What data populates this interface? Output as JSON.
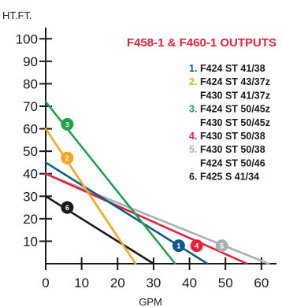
{
  "chart_data": {
    "type": "line",
    "title": "F458-1 & F460-1 OUTPUTS",
    "title_color": "#e8213a",
    "ylabel": "HT.FT.",
    "xlabel": "GPM",
    "xlim": [
      0,
      62
    ],
    "ylim": [
      0,
      105
    ],
    "x_ticks": [
      0,
      10,
      20,
      30,
      40,
      50,
      60
    ],
    "y_ticks": [
      10,
      20,
      30,
      40,
      50,
      60,
      70,
      80,
      90,
      100
    ],
    "grid": false,
    "legend_position": "right",
    "series": [
      {
        "id": "1",
        "legend": [
          "F424 ST 41/38"
        ],
        "color": "#0d5a86",
        "x": [
          0,
          45
        ],
        "y": [
          45,
          0
        ],
        "marker_x": 37,
        "marker_y": 8
      },
      {
        "id": "2",
        "legend": [
          "F424 ST 43/37z",
          "F430 ST 41/37z"
        ],
        "color": "#f6a621",
        "x": [
          0,
          25
        ],
        "y": [
          60,
          0
        ],
        "marker_x": 6,
        "marker_y": 47
      },
      {
        "id": "3",
        "legend": [
          "F424 ST 50/45z",
          "F430 ST 50/45z"
        ],
        "color": "#1ea34b",
        "x": [
          0,
          36
        ],
        "y": [
          72,
          0
        ],
        "marker_x": 6,
        "marker_y": 62
      },
      {
        "id": "4",
        "legend": [
          "F430 ST 50/38"
        ],
        "color": "#e8213a",
        "x": [
          0,
          56
        ],
        "y": [
          40,
          0
        ],
        "marker_x": 42,
        "marker_y": 8
      },
      {
        "id": "5",
        "legend": [
          "F430 ST 50/38",
          "F424 ST 50/46"
        ],
        "color": "#a7b1b1",
        "x": [
          0,
          62
        ],
        "y": [
          40,
          0
        ],
        "marker_x": 49,
        "marker_y": 8
      },
      {
        "id": "6",
        "legend": [
          "F425 S 41/34"
        ],
        "color": "#1a1a1a",
        "x": [
          0,
          30
        ],
        "y": [
          30,
          0
        ],
        "marker_x": 6,
        "marker_y": 25
      }
    ]
  }
}
